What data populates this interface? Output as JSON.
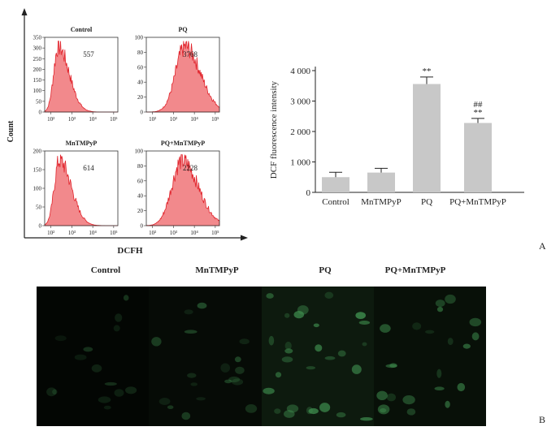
{
  "panel_a": {
    "letter": "A",
    "flow": {
      "y_axis_label": "Count",
      "x_axis_label": "DCFH",
      "histograms": [
        {
          "title": "Control",
          "value": "557",
          "ymax": 350,
          "yticks": [
            "0",
            "50",
            "100",
            "150",
            "200",
            "250",
            "300",
            "350"
          ],
          "peak_log": 2.35,
          "width": 0.22,
          "skew": 1.3
        },
        {
          "title": "PQ",
          "value": "3768",
          "ymax": 100,
          "yticks": [
            "0",
            "20",
            "40",
            "60",
            "80",
            "100"
          ],
          "peak_log": 3.55,
          "width": 0.45,
          "skew": 0.9
        },
        {
          "title": "MnTMPyP",
          "value": "614",
          "ymax": 200,
          "yticks": [
            "0",
            "50",
            "100",
            "150",
            "200"
          ],
          "peak_log": 2.4,
          "width": 0.24,
          "skew": 1.3
        },
        {
          "title": "PQ+MnTMPyP",
          "value": "2228",
          "ymax": 100,
          "yticks": [
            "0",
            "20",
            "40",
            "60",
            "80",
            "100"
          ],
          "peak_log": 3.4,
          "width": 0.48,
          "skew": 0.9
        }
      ],
      "x_ticks": [
        "10²",
        "10³",
        "10⁴",
        "10⁵"
      ]
    },
    "chart_data": {
      "type": "bar",
      "categories": [
        "Control",
        "MnTMPyP",
        "PQ",
        "PQ+MnTMPyP"
      ],
      "values": [
        500,
        650,
        3560,
        2280
      ],
      "errors": [
        160,
        140,
        230,
        150
      ],
      "annotations": [
        "",
        "",
        "**",
        "##\n**"
      ],
      "ylabel": "DCF fluorescence intensity",
      "ylim": [
        0,
        4000
      ],
      "yticks": [
        "0",
        "1 000",
        "2 000",
        "3 000",
        "4 000"
      ],
      "grid": false,
      "bar_color": "#c8c8c8"
    }
  },
  "panel_b": {
    "letter": "B",
    "labels": [
      "Control",
      "MnTMPyP",
      "PQ",
      "PQ+MnTMPyP"
    ]
  }
}
